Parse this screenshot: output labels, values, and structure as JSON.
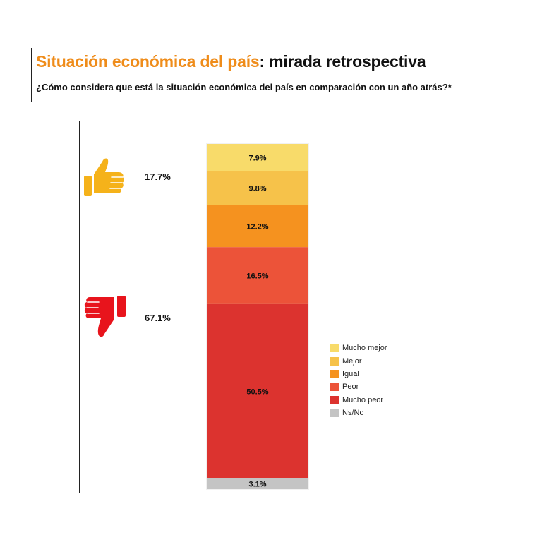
{
  "title": {
    "highlight": "Situación económica del país",
    "rest": ": mirada retrospectiva"
  },
  "subtitle": "¿Cómo considera que está la situación económica del país en comparación con un año atrás?*",
  "summary": {
    "positive": {
      "label": "17.7%",
      "icon": "thumbs-up-icon",
      "color": "#f5b21a"
    },
    "negative": {
      "label": "67.1%",
      "icon": "thumbs-down-icon",
      "color": "#e8141c"
    }
  },
  "chart_data": {
    "type": "bar",
    "stacked": true,
    "categories": [
      ""
    ],
    "ylim": [
      0,
      100
    ],
    "grid": false,
    "legend_position": "right",
    "series": [
      {
        "name": "Mucho mejor",
        "values": [
          7.9
        ],
        "label": "7.9%",
        "color": "#f8db6a"
      },
      {
        "name": "Mejor",
        "values": [
          9.8
        ],
        "label": "9.8%",
        "color": "#f6c24a"
      },
      {
        "name": "Igual",
        "values": [
          12.2
        ],
        "label": "12.2%",
        "color": "#f5921f"
      },
      {
        "name": "Peor",
        "values": [
          16.5
        ],
        "label": "16.5%",
        "color": "#ec5339"
      },
      {
        "name": "Mucho peor",
        "values": [
          50.5
        ],
        "label": "50.5%",
        "color": "#dc332f"
      },
      {
        "name": "Ns/Nc",
        "values": [
          3.1
        ],
        "label": "3.1%",
        "color": "#c4c4c4"
      }
    ]
  }
}
